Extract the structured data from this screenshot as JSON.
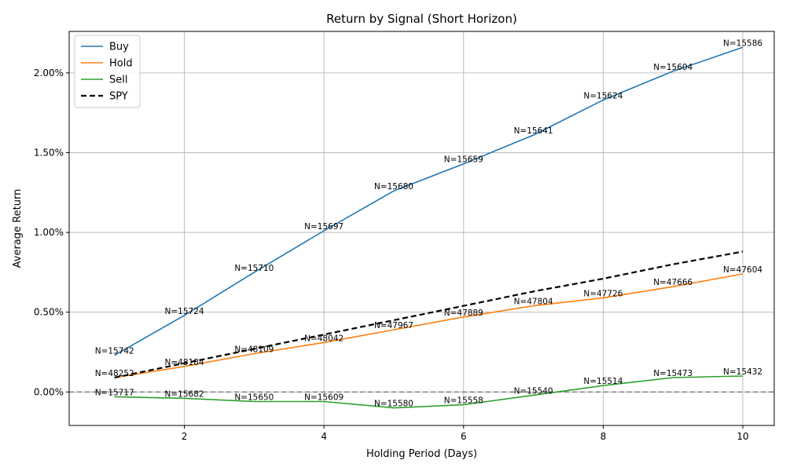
{
  "chart_data": {
    "type": "line",
    "title": "Return by Signal (Short Horizon)",
    "xlabel": "Holding Period (Days)",
    "ylabel": "Average Return",
    "x": [
      1,
      2,
      3,
      4,
      5,
      6,
      7,
      8,
      9,
      10
    ],
    "xlim": [
      0.35,
      10.45
    ],
    "ylim": [
      -0.0021,
      0.0226
    ],
    "x_ticks": [
      2,
      4,
      6,
      8,
      10
    ],
    "y_ticks": [
      0.0,
      0.005,
      0.01,
      0.015,
      0.02
    ],
    "y_tick_labels": [
      "0.00%",
      "0.50%",
      "1.00%",
      "1.50%",
      "2.00%"
    ],
    "grid": true,
    "legend_position": "top-left",
    "zero_line": {
      "y": 0,
      "color": "#808080",
      "dashed": true
    },
    "series": [
      {
        "name": "Buy",
        "color": "#1f77b4",
        "dashed": false,
        "values": [
          0.0023,
          0.0048,
          0.0075,
          0.0101,
          0.0126,
          0.0143,
          0.0161,
          0.0183,
          0.0201,
          0.0216
        ],
        "n_labels": [
          "N=15742",
          "N=15724",
          "N=15710",
          "N=15697",
          "N=15680",
          "N=15659",
          "N=15641",
          "N=15624",
          "N=15604",
          "N=15586"
        ]
      },
      {
        "name": "Hold",
        "color": "#ff7f0e",
        "dashed": false,
        "values": [
          0.0009,
          0.0016,
          0.0024,
          0.0031,
          0.0039,
          0.0047,
          0.0054,
          0.0059,
          0.0066,
          0.0074
        ],
        "n_labels": [
          "N=48252",
          "N=48184",
          "N=48109",
          "N=48042",
          "N=47967",
          "N=47889",
          "N=47804",
          "N=47726",
          "N=47666",
          "N=47604"
        ]
      },
      {
        "name": "Sell",
        "color": "#2ca02c",
        "dashed": false,
        "values": [
          -0.0003,
          -0.0004,
          -0.0006,
          -0.0006,
          -0.001,
          -0.0008,
          -0.0002,
          0.0004,
          0.0009,
          0.001
        ],
        "n_labels": [
          "N=15717",
          "N=15682",
          "N=15650",
          "N=15609",
          "N=15580",
          "N=15558",
          "N=15540",
          "N=15514",
          "N=15473",
          "N=15432"
        ]
      },
      {
        "name": "SPY",
        "color": "#000000",
        "dashed": true,
        "values": [
          0.0009,
          0.0018,
          0.0027,
          0.0036,
          0.0045,
          0.0054,
          0.0063,
          0.0071,
          0.008,
          0.0088
        ],
        "n_labels": []
      }
    ]
  }
}
